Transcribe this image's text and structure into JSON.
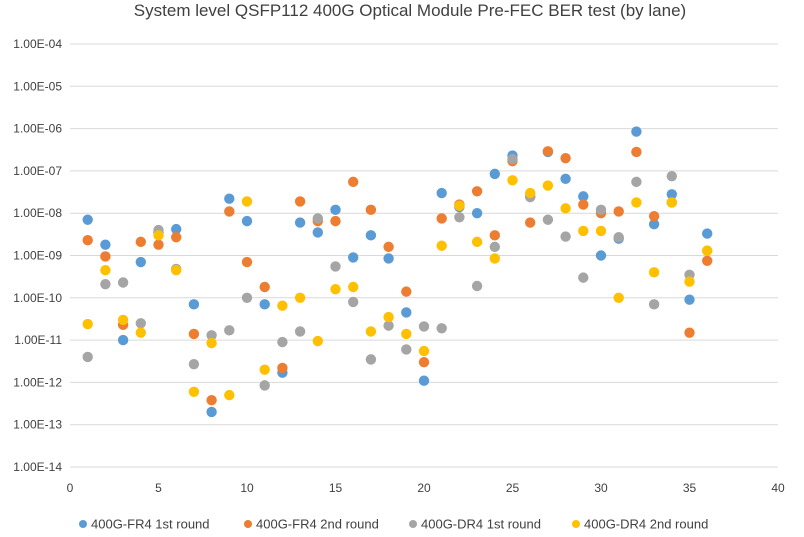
{
  "chart_data": {
    "type": "scatter",
    "title": "System level QSFP112 400G Optical Module Pre-FEC BER test (by lane)",
    "xlabel": "",
    "ylabel": "",
    "xlim": [
      0,
      40
    ],
    "xticks": [
      0,
      5,
      10,
      15,
      20,
      25,
      30,
      35,
      40
    ],
    "ylim_exp": [
      -14,
      -4
    ],
    "yscale": "log",
    "yticks": [
      "1.00E-04",
      "1.00E-05",
      "1.00E-06",
      "1.00E-07",
      "1.00E-08",
      "1.00E-09",
      "1.00E-10",
      "1.00E-11",
      "1.00E-12",
      "1.00E-13",
      "1.00E-14"
    ],
    "grid": "horizontal",
    "legend_position": "bottom",
    "series": [
      {
        "name": "400G-FR4 1st round",
        "color": "#5B9BD5",
        "points": [
          [
            1,
            7e-09
          ],
          [
            2,
            1.8e-09
          ],
          [
            3,
            1e-11
          ],
          [
            4,
            7e-10
          ],
          [
            5,
            3.5e-09
          ],
          [
            6,
            4.2e-09
          ],
          [
            7,
            7e-11
          ],
          [
            8,
            2e-13
          ],
          [
            9,
            2.2e-08
          ],
          [
            10,
            6.5e-09
          ],
          [
            11,
            7e-11
          ],
          [
            12,
            1.7e-12
          ],
          [
            13,
            6e-09
          ],
          [
            14,
            3.5e-09
          ],
          [
            15,
            1.2e-08
          ],
          [
            16,
            9e-10
          ],
          [
            17,
            3e-09
          ],
          [
            18,
            8.5e-10
          ],
          [
            19,
            4.5e-11
          ],
          [
            20,
            1.1e-12
          ],
          [
            21,
            3e-08
          ],
          [
            22,
            1.4e-08
          ],
          [
            23,
            1e-08
          ],
          [
            24,
            8.5e-08
          ],
          [
            25,
            2.3e-07
          ],
          [
            26,
            2.5e-08
          ],
          [
            27,
            2.8e-07
          ],
          [
            28,
            6.5e-08
          ],
          [
            29,
            2.5e-08
          ],
          [
            30,
            1e-09
          ],
          [
            31,
            2.5e-09
          ],
          [
            32,
            8.5e-07
          ],
          [
            33,
            5.5e-09
          ],
          [
            34,
            2.8e-08
          ],
          [
            35,
            9e-11
          ],
          [
            36,
            3.3e-09
          ]
        ]
      },
      {
        "name": "400G-FR4 2nd round",
        "color": "#ED7D31",
        "points": [
          [
            1,
            2.3e-09
          ],
          [
            2,
            9.5e-10
          ],
          [
            3,
            2.3e-11
          ],
          [
            4,
            2.1e-09
          ],
          [
            5,
            1.8e-09
          ],
          [
            6,
            2.7e-09
          ],
          [
            7,
            1.4e-11
          ],
          [
            8,
            3.8e-13
          ],
          [
            9,
            1.1e-08
          ],
          [
            10,
            7e-10
          ],
          [
            11,
            1.8e-10
          ],
          [
            12,
            2.2e-12
          ],
          [
            13,
            1.9e-08
          ],
          [
            14,
            6.5e-09
          ],
          [
            15,
            6.5e-09
          ],
          [
            16,
            5.5e-08
          ],
          [
            17,
            1.2e-08
          ],
          [
            18,
            1.6e-09
          ],
          [
            19,
            1.4e-10
          ],
          [
            20,
            3e-12
          ],
          [
            21,
            7.5e-09
          ],
          [
            22,
            1.6e-08
          ],
          [
            23,
            3.3e-08
          ],
          [
            24,
            3e-09
          ],
          [
            25,
            1.7e-07
          ],
          [
            26,
            6e-09
          ],
          [
            27,
            2.9e-07
          ],
          [
            28,
            2e-07
          ],
          [
            29,
            1.6e-08
          ],
          [
            30,
            1e-08
          ],
          [
            31,
            1.1e-08
          ],
          [
            32,
            2.8e-07
          ],
          [
            33,
            8.5e-09
          ],
          [
            34,
            1.8e-08
          ],
          [
            35,
            1.5e-11
          ],
          [
            36,
            7.5e-10
          ]
        ]
      },
      {
        "name": "400G-DR4 1st round",
        "color": "#A5A5A5",
        "points": [
          [
            1,
            4e-12
          ],
          [
            2,
            2.1e-10
          ],
          [
            3,
            2.3e-10
          ],
          [
            4,
            2.5e-11
          ],
          [
            5,
            4e-09
          ],
          [
            6,
            4.8e-10
          ],
          [
            7,
            2.7e-12
          ],
          [
            8,
            1.3e-11
          ],
          [
            9,
            1.7e-11
          ],
          [
            10,
            1e-10
          ],
          [
            11,
            8.5e-13
          ],
          [
            12,
            9e-12
          ],
          [
            13,
            1.6e-11
          ],
          [
            14,
            7.5e-09
          ],
          [
            15,
            5.5e-10
          ],
          [
            16,
            8e-11
          ],
          [
            17,
            3.5e-12
          ],
          [
            18,
            2.2e-11
          ],
          [
            19,
            6e-12
          ],
          [
            20,
            2.1e-11
          ],
          [
            21,
            1.9e-11
          ],
          [
            22,
            8e-09
          ],
          [
            23,
            1.9e-10
          ],
          [
            24,
            1.6e-09
          ],
          [
            25,
            1.9e-07
          ],
          [
            26,
            2.4e-08
          ],
          [
            27,
            7e-09
          ],
          [
            28,
            2.8e-09
          ],
          [
            29,
            3e-10
          ],
          [
            30,
            1.2e-08
          ],
          [
            31,
            2.7e-09
          ],
          [
            32,
            5.5e-08
          ],
          [
            33,
            7e-11
          ],
          [
            34,
            7.5e-08
          ],
          [
            35,
            3.5e-10
          ],
          [
            36,
            1.3e-09
          ]
        ]
      },
      {
        "name": "400G-DR4 2nd round",
        "color": "#FFC000",
        "points": [
          [
            1,
            2.4e-11
          ],
          [
            2,
            4.5e-10
          ],
          [
            3,
            3e-11
          ],
          [
            4,
            1.5e-11
          ],
          [
            5,
            3e-09
          ],
          [
            6,
            4.5e-10
          ],
          [
            7,
            6e-13
          ],
          [
            8,
            8.5e-12
          ],
          [
            9,
            5e-13
          ],
          [
            10,
            1.9e-08
          ],
          [
            11,
            2e-12
          ],
          [
            12,
            6.5e-11
          ],
          [
            13,
            1e-10
          ],
          [
            14,
            9.5e-12
          ],
          [
            15,
            1.6e-10
          ],
          [
            16,
            1.8e-10
          ],
          [
            17,
            1.6e-11
          ],
          [
            18,
            3.5e-11
          ],
          [
            19,
            1.4e-11
          ],
          [
            20,
            5.5e-12
          ],
          [
            21,
            1.7e-09
          ],
          [
            22,
            1.5e-08
          ],
          [
            23,
            2.1e-09
          ],
          [
            24,
            8.5e-10
          ],
          [
            25,
            6e-08
          ],
          [
            26,
            3e-08
          ],
          [
            27,
            4.5e-08
          ],
          [
            28,
            1.3e-08
          ],
          [
            29,
            3.8e-09
          ],
          [
            30,
            3.8e-09
          ],
          [
            31,
            1e-10
          ],
          [
            32,
            1.8e-08
          ],
          [
            33,
            4e-10
          ],
          [
            34,
            1.8e-08
          ],
          [
            35,
            2.4e-10
          ],
          [
            36,
            1.3e-09
          ]
        ]
      }
    ]
  }
}
